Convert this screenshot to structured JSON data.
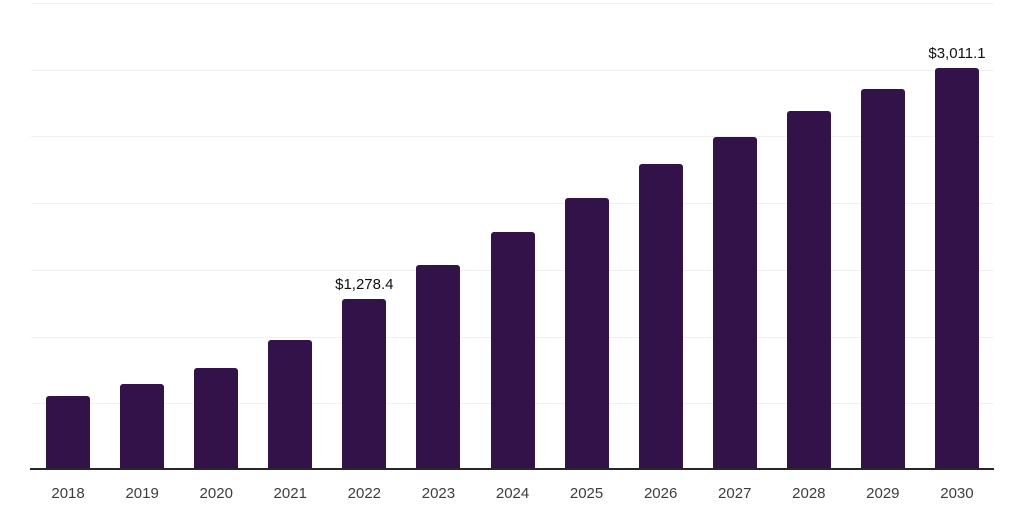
{
  "chart_data": {
    "type": "bar",
    "title": "",
    "xlabel": "",
    "ylabel": "",
    "categories": [
      "2018",
      "2019",
      "2020",
      "2021",
      "2022",
      "2023",
      "2024",
      "2025",
      "2026",
      "2027",
      "2028",
      "2029",
      "2030"
    ],
    "values": [
      552.7,
      642.2,
      761.7,
      978.3,
      1278.4,
      1538.4,
      1785.0,
      2038.7,
      2292.6,
      2494.3,
      2688.5,
      2852.8,
      3011.1
    ],
    "data_labels": [
      {
        "category": "2022",
        "label": "$1,278.4"
      },
      {
        "category": "2030",
        "label": "$3,011.1"
      }
    ],
    "ylim": [
      0,
      3500
    ],
    "gridline_step": 500,
    "grid": true,
    "y_tick_labels_visible": false,
    "legend": "none",
    "colors": {
      "bar": "#331149",
      "grid": "#f0f0f2",
      "axis": "#28282c",
      "tick_label": "#3d3d3d",
      "value_label": "#111111",
      "background": "#ffffff"
    }
  }
}
